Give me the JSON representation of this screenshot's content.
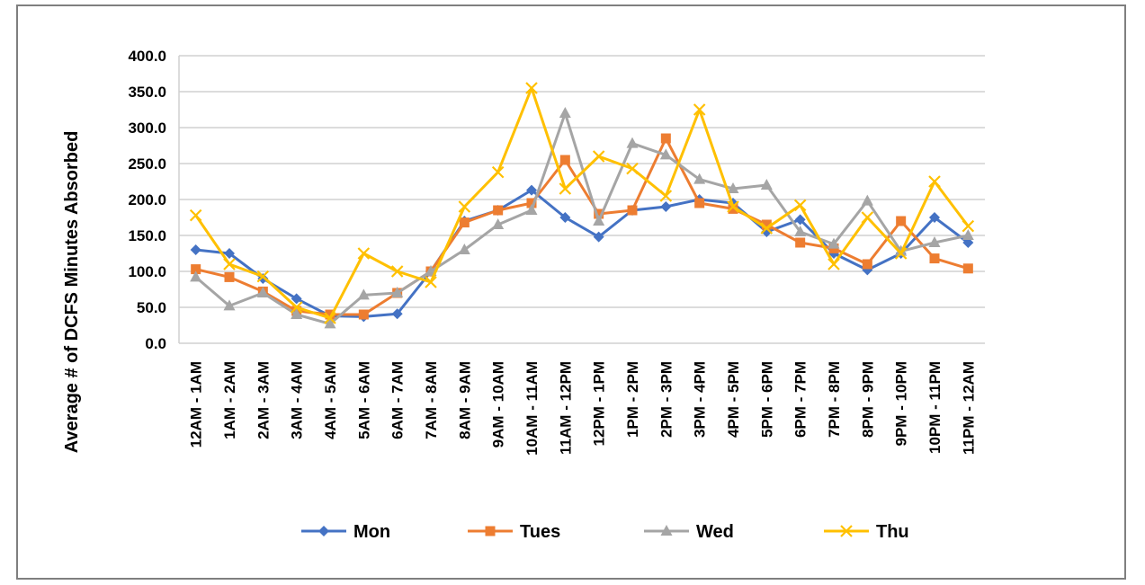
{
  "chart_data": {
    "type": "line",
    "ylabel": "Average  # of  DCFS  Minutes Absorbed",
    "xlabel": "",
    "ylim": [
      0,
      400
    ],
    "yticks": [
      "0.0",
      "50.0",
      "100.0",
      "150.0",
      "200.0",
      "250.0",
      "300.0",
      "350.0",
      "400.0"
    ],
    "grid": true,
    "legend_position": "bottom",
    "categories": [
      "12AM - 1AM",
      "1AM - 2AM",
      "2AM - 3AM",
      "3AM - 4AM",
      "4AM - 5AM",
      "5AM - 6AM",
      "6AM - 7AM",
      "7AM - 8AM",
      "8AM - 9AM",
      "9AM - 10AM",
      "10AM - 11AM",
      "11AM - 12PM",
      "12PM - 1PM",
      "1PM - 2PM",
      "2PM - 3PM",
      "3PM - 4PM",
      "4PM - 5PM",
      "5PM - 6PM",
      "6PM - 7PM",
      "7PM - 8PM",
      "8PM - 9PM",
      "9PM - 10PM",
      "10PM - 11PM",
      "11PM - 12AM"
    ],
    "series": [
      {
        "name": "Mon",
        "color": "#4472c4",
        "marker": "diamond",
        "values": [
          130,
          125,
          90,
          62,
          38,
          37,
          41,
          100,
          170,
          185,
          213,
          175,
          148,
          185,
          190,
          200,
          195,
          155,
          172,
          125,
          102,
          125,
          175,
          140
        ]
      },
      {
        "name": "Tues",
        "color": "#ed7d31",
        "marker": "square",
        "values": [
          103,
          92,
          72,
          45,
          40,
          40,
          70,
          100,
          168,
          185,
          195,
          255,
          180,
          185,
          285,
          195,
          187,
          165,
          140,
          132,
          110,
          170,
          118,
          104
        ]
      },
      {
        "name": "Wed",
        "color": "#a5a5a5",
        "marker": "triangle",
        "values": [
          92,
          52,
          70,
          40,
          27,
          67,
          70,
          100,
          130,
          165,
          185,
          320,
          170,
          278,
          262,
          228,
          215,
          220,
          155,
          138,
          198,
          128,
          140,
          150
        ]
      },
      {
        "name": "Thu",
        "color": "#ffc000",
        "marker": "x",
        "values": [
          178,
          110,
          93,
          50,
          35,
          125,
          100,
          85,
          190,
          238,
          355,
          215,
          260,
          243,
          205,
          325,
          190,
          160,
          192,
          110,
          175,
          125,
          225,
          163
        ]
      }
    ]
  }
}
